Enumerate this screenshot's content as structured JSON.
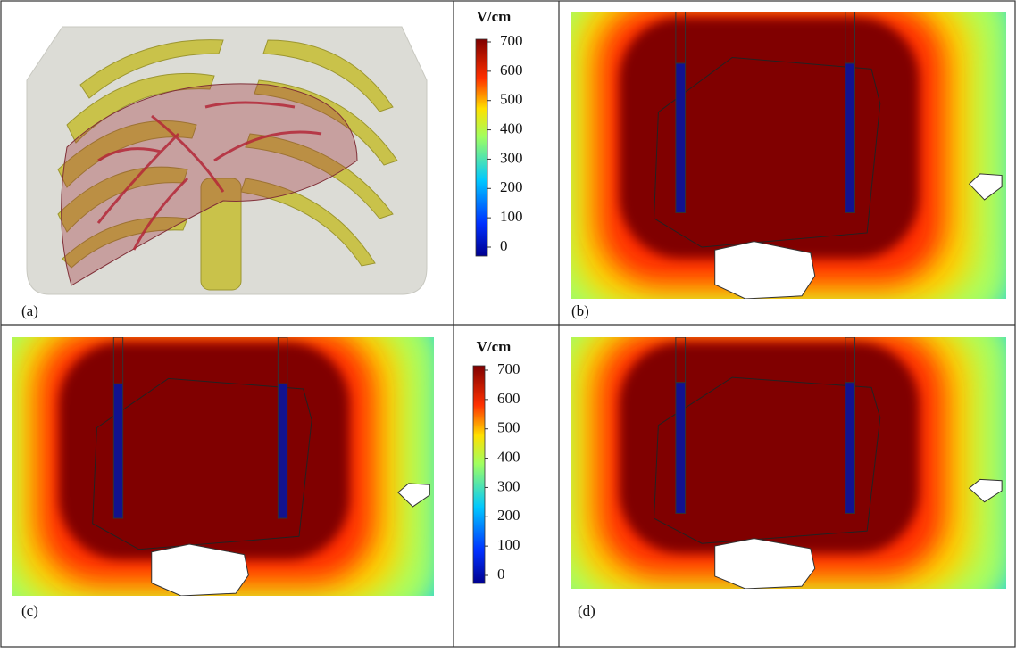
{
  "panels": [
    {
      "label": "(a)"
    },
    {
      "label": "(b)"
    },
    {
      "label": "(c)"
    },
    {
      "label": "(d)"
    }
  ],
  "colorbars": [
    {
      "unit": "V/cm",
      "lim": [
        0,
        700
      ],
      "ticks": [
        0,
        100,
        200,
        300,
        400,
        500,
        600,
        700
      ]
    },
    {
      "unit": "V/cm",
      "lim": [
        0,
        700
      ],
      "ticks": [
        0,
        100,
        200,
        300,
        400,
        500,
        600,
        700
      ]
    }
  ]
}
